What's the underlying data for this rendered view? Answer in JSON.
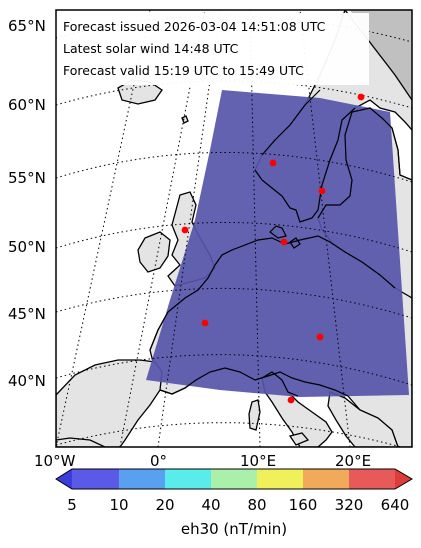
{
  "info": {
    "issued": "Forecast issued 2026-03-04 14:51:08 UTC",
    "solar_wind": "Latest solar wind 14:48 UTC",
    "valid": "Forecast valid 15:19 UTC to 15:49 UTC"
  },
  "lat_labels": [
    "65°N",
    "60°N",
    "55°N",
    "50°N",
    "45°N",
    "40°N"
  ],
  "lon_labels": [
    "10°W",
    "0°",
    "10°E",
    "20°E"
  ],
  "colorbar": {
    "title": "eh30 (nT/min)",
    "ticks": [
      "5",
      "10",
      "20",
      "40",
      "80",
      "160",
      "320",
      "640"
    ],
    "colors": [
      "#3c3cdc",
      "#5a5ae6",
      "#5aa0f0",
      "#5aebeb",
      "#aaf0aa",
      "#f0f05a",
      "#f0aa5a",
      "#e65a5a",
      "#dc3c3c"
    ]
  },
  "colors": {
    "forecast_fill": "#5555aa",
    "land": "#e4e4e4",
    "sea": "#ffffff",
    "station": "#ff0000"
  }
}
